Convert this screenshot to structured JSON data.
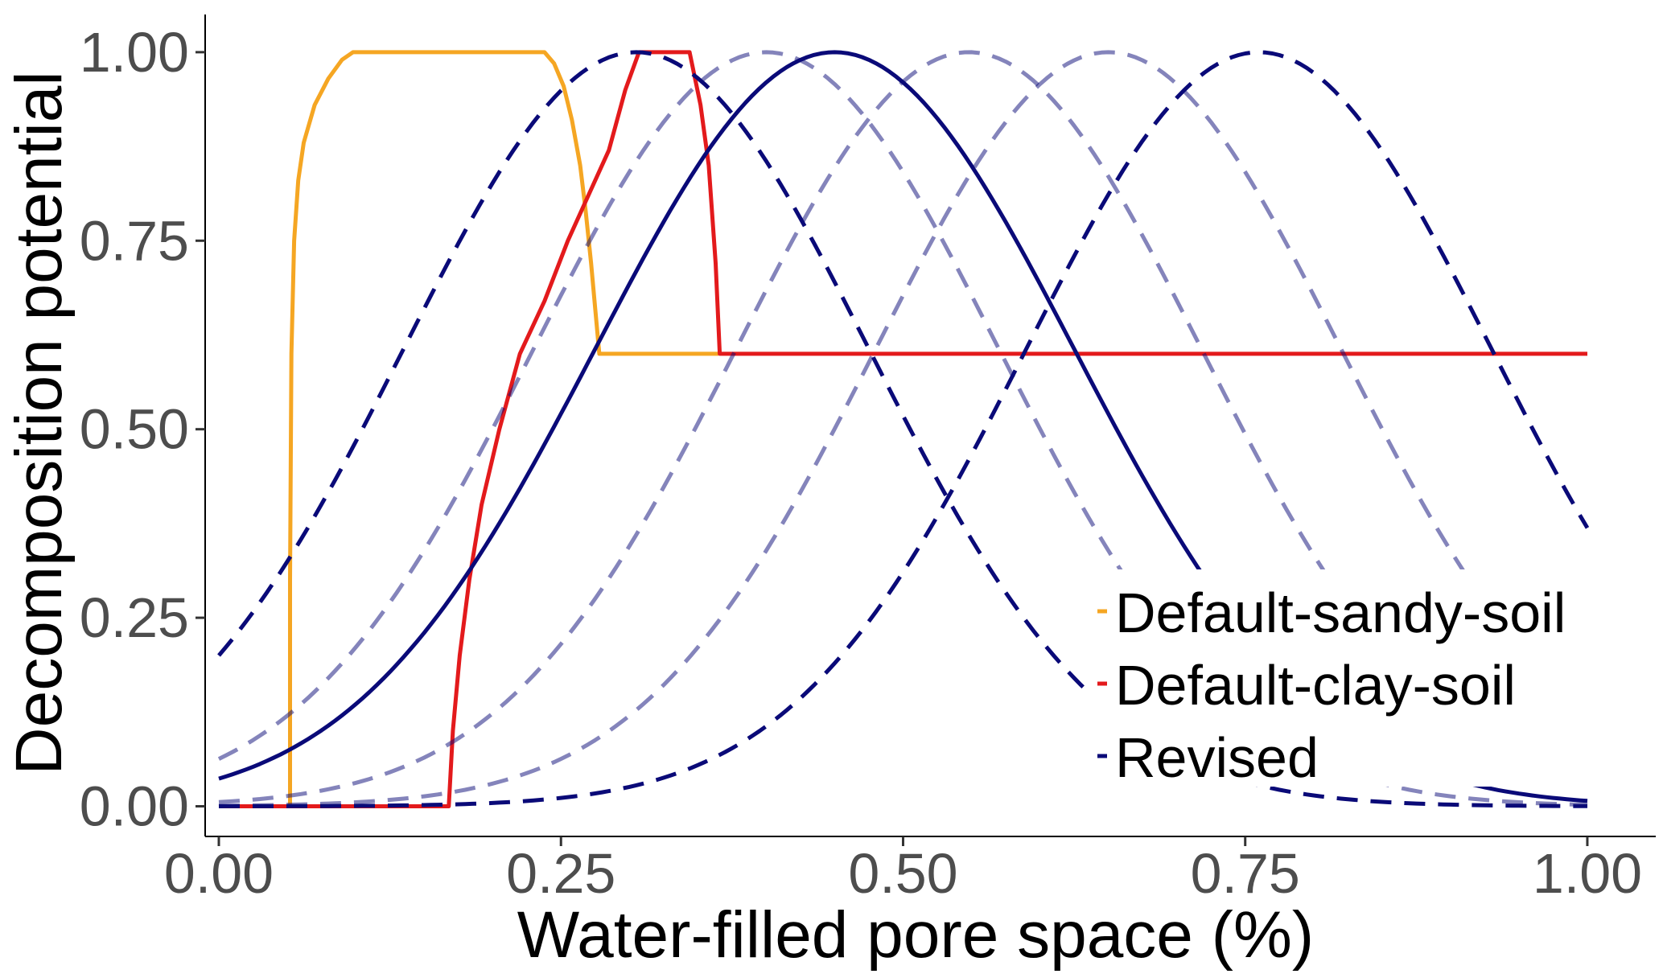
{
  "chart_data": {
    "type": "line",
    "title": "",
    "xlabel": "Water-filled pore space (%)",
    "ylabel": "Decomposition potential",
    "xlim": [
      -0.01,
      1.05
    ],
    "ylim": [
      -0.04,
      1.05
    ],
    "x_ticks": [
      0,
      0.25,
      0.5,
      0.75,
      1
    ],
    "x_tick_labels": [
      "0.00",
      "0.25",
      "0.50",
      "0.75",
      "1.00"
    ],
    "y_ticks": [
      0,
      0.25,
      0.5,
      0.75,
      1
    ],
    "y_tick_labels": [
      "0.00",
      "0.25",
      "0.50",
      "0.75",
      "1.00"
    ],
    "grid": false,
    "legend_position": "bottom-right",
    "legend": [
      {
        "label": "Default-sandy-soil",
        "color": "#f5a623"
      },
      {
        "label": "Default-clay-soil",
        "color": "#e31a1c"
      },
      {
        "label": "Revised",
        "color": "#0a0a78"
      }
    ],
    "series": [
      {
        "group": "Default-sandy-soil",
        "color": "#f5a623",
        "dash": "solid",
        "points": [
          [
            0,
            0
          ],
          [
            0.052,
            0
          ],
          [
            0.052,
            0.3
          ],
          [
            0.053,
            0.6
          ],
          [
            0.055,
            0.75
          ],
          [
            0.058,
            0.83
          ],
          [
            0.062,
            0.88
          ],
          [
            0.07,
            0.93
          ],
          [
            0.08,
            0.965
          ],
          [
            0.09,
            0.99
          ],
          [
            0.098,
            1
          ],
          [
            0.238,
            1
          ],
          [
            0.245,
            0.985
          ],
          [
            0.252,
            0.955
          ],
          [
            0.258,
            0.91
          ],
          [
            0.264,
            0.85
          ],
          [
            0.268,
            0.79
          ],
          [
            0.272,
            0.72
          ],
          [
            0.275,
            0.66
          ],
          [
            0.278,
            0.6
          ],
          [
            0.365,
            0.6
          ]
        ]
      },
      {
        "group": "Default-clay-soil",
        "color": "#e31a1c",
        "dash": "solid",
        "points": [
          [
            0,
            0
          ],
          [
            0.168,
            0
          ],
          [
            0.171,
            0.1
          ],
          [
            0.176,
            0.2
          ],
          [
            0.183,
            0.3
          ],
          [
            0.192,
            0.4
          ],
          [
            0.205,
            0.5
          ],
          [
            0.22,
            0.6
          ],
          [
            0.238,
            0.67
          ],
          [
            0.255,
            0.75
          ],
          [
            0.27,
            0.81
          ],
          [
            0.285,
            0.87
          ],
          [
            0.297,
            0.95
          ],
          [
            0.307,
            1
          ],
          [
            0.344,
            1
          ],
          [
            0.352,
            0.93
          ],
          [
            0.358,
            0.85
          ],
          [
            0.363,
            0.72
          ],
          [
            0.366,
            0.6
          ],
          [
            1,
            0.6
          ]
        ]
      },
      {
        "group": "Revised",
        "color": "#0a0a78",
        "dash": "solid",
        "opacity": 1,
        "mu": 0.45,
        "sigma": 0.175
      },
      {
        "group": "Revised",
        "color": "#0a0a78",
        "dash": "dashed",
        "opacity": 1,
        "mu": 0.305,
        "sigma": 0.17
      },
      {
        "group": "Revised",
        "color": "#0a0a78",
        "dash": "dashed",
        "opacity": 1,
        "mu": 0.76,
        "sigma": 0.17
      },
      {
        "group": "Revised",
        "color": "#0a0a78",
        "dash": "dashed",
        "opacity": 0.5,
        "mu": 0.4,
        "sigma": 0.17
      },
      {
        "group": "Revised",
        "color": "#0a0a78",
        "dash": "dashed",
        "opacity": 0.5,
        "mu": 0.548,
        "sigma": 0.17
      },
      {
        "group": "Revised",
        "color": "#0a0a78",
        "dash": "dashed",
        "opacity": 0.5,
        "mu": 0.65,
        "sigma": 0.17
      }
    ]
  }
}
